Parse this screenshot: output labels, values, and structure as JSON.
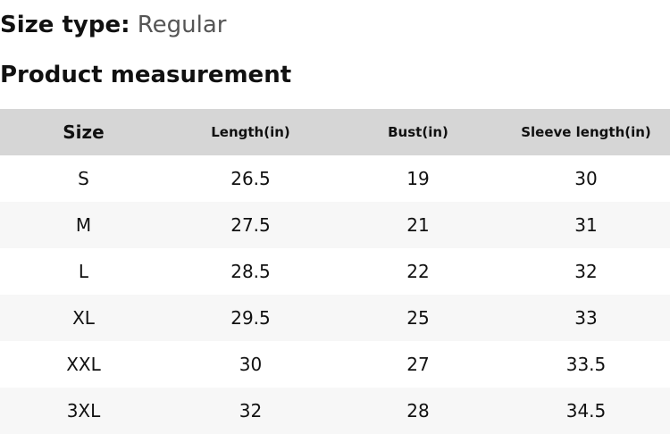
{
  "size_type": {
    "label": "Size type:",
    "value": "Regular"
  },
  "section_title": "Product measurement",
  "table": {
    "headers": [
      "Size",
      "Length(in)",
      "Bust(in)",
      "Sleeve length(in)"
    ],
    "rows": [
      [
        "S",
        "26.5",
        "19",
        "30"
      ],
      [
        "M",
        "27.5",
        "21",
        "31"
      ],
      [
        "L",
        "28.5",
        "22",
        "32"
      ],
      [
        "XL",
        "29.5",
        "25",
        "33"
      ],
      [
        "XXL",
        "30",
        "27",
        "33.5"
      ],
      [
        "3XL",
        "32",
        "28",
        "34.5"
      ]
    ]
  },
  "colors": {
    "header_background": "#d6d6d6",
    "alt_row_background": "#f7f7f7",
    "value_text": "#555555"
  }
}
